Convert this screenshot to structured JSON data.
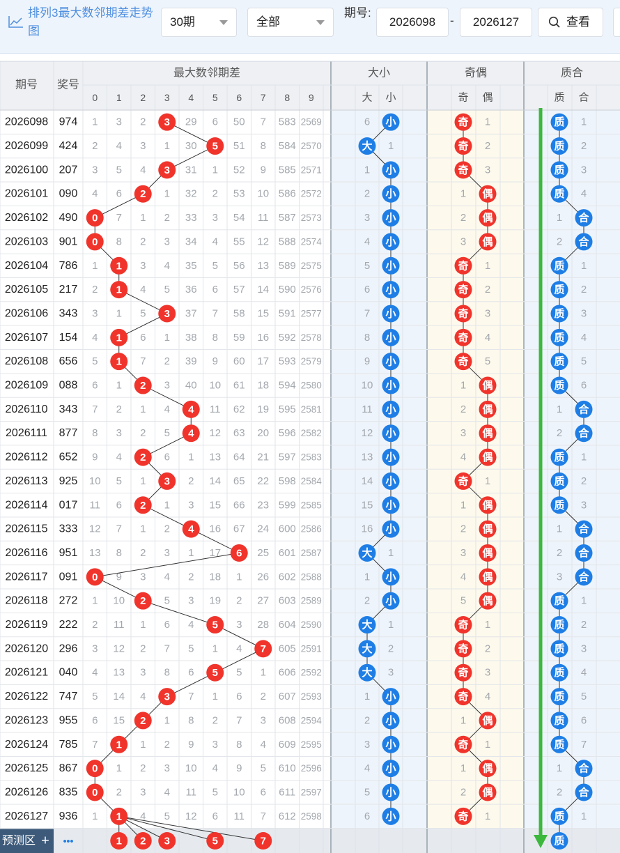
{
  "toolbar": {
    "title": "排列3最大数邻期差走势图",
    "period_select": "30期",
    "filter_select": "全部",
    "issue_label": "期号:",
    "issue_start": "2026098",
    "issue_end": "2026127",
    "range_separator": "-",
    "query_button": "查看"
  },
  "table": {
    "headers": {
      "issue": "期号",
      "prize": "奖号",
      "max_diff": "最大数邻期差",
      "size": "大小",
      "parity": "奇偶",
      "prime": "质合"
    },
    "diff_columns": [
      "0",
      "1",
      "2",
      "3",
      "4",
      "5",
      "6",
      "7",
      "8",
      "9"
    ],
    "size_columns": [
      "大",
      "小"
    ],
    "parity_columns": [
      "奇",
      "偶"
    ],
    "prime_columns": [
      "质",
      "合"
    ],
    "rows": [
      {
        "issue": "2026098",
        "prize": "974",
        "diff": [
          "1",
          "3",
          "2",
          "3",
          "29",
          "6",
          "50",
          "7",
          "583",
          "2569"
        ],
        "hit": 3,
        "size": [
          "6",
          "小"
        ],
        "size_hit": 1,
        "parity": [
          "奇",
          "1"
        ],
        "parity_hit": 0,
        "prime": [
          "质",
          "1"
        ],
        "prime_hit": 0
      },
      {
        "issue": "2026099",
        "prize": "424",
        "diff": [
          "2",
          "4",
          "3",
          "1",
          "30",
          "5",
          "51",
          "8",
          "584",
          "2570"
        ],
        "hit": 5,
        "size": [
          "大",
          "1"
        ],
        "size_hit": 0,
        "parity": [
          "奇",
          "2"
        ],
        "parity_hit": 0,
        "prime": [
          "质",
          "2"
        ],
        "prime_hit": 0
      },
      {
        "issue": "2026100",
        "prize": "207",
        "diff": [
          "3",
          "5",
          "4",
          "3",
          "31",
          "1",
          "52",
          "9",
          "585",
          "2571"
        ],
        "hit": 3,
        "size": [
          "1",
          "小"
        ],
        "size_hit": 1,
        "parity": [
          "奇",
          "3"
        ],
        "parity_hit": 0,
        "prime": [
          "质",
          "3"
        ],
        "prime_hit": 0
      },
      {
        "issue": "2026101",
        "prize": "090",
        "diff": [
          "4",
          "6",
          "2",
          "1",
          "32",
          "2",
          "53",
          "10",
          "586",
          "2572"
        ],
        "hit": 2,
        "size": [
          "2",
          "小"
        ],
        "size_hit": 1,
        "parity": [
          "1",
          "偶"
        ],
        "parity_hit": 1,
        "prime": [
          "质",
          "4"
        ],
        "prime_hit": 0
      },
      {
        "issue": "2026102",
        "prize": "490",
        "diff": [
          "0",
          "7",
          "1",
          "2",
          "33",
          "3",
          "54",
          "11",
          "587",
          "2573"
        ],
        "hit": 0,
        "size": [
          "3",
          "小"
        ],
        "size_hit": 1,
        "parity": [
          "2",
          "偶"
        ],
        "parity_hit": 1,
        "prime": [
          "1",
          "合"
        ],
        "prime_hit": 1
      },
      {
        "issue": "2026103",
        "prize": "901",
        "diff": [
          "0",
          "8",
          "2",
          "3",
          "34",
          "4",
          "55",
          "12",
          "588",
          "2574"
        ],
        "hit": 0,
        "size": [
          "4",
          "小"
        ],
        "size_hit": 1,
        "parity": [
          "3",
          "偶"
        ],
        "parity_hit": 1,
        "prime": [
          "2",
          "合"
        ],
        "prime_hit": 1
      },
      {
        "issue": "2026104",
        "prize": "786",
        "diff": [
          "1",
          "1",
          "3",
          "4",
          "35",
          "5",
          "56",
          "13",
          "589",
          "2575"
        ],
        "hit": 1,
        "size": [
          "5",
          "小"
        ],
        "size_hit": 1,
        "parity": [
          "奇",
          "1"
        ],
        "parity_hit": 0,
        "prime": [
          "质",
          "1"
        ],
        "prime_hit": 0
      },
      {
        "issue": "2026105",
        "prize": "217",
        "diff": [
          "2",
          "1",
          "4",
          "5",
          "36",
          "6",
          "57",
          "14",
          "590",
          "2576"
        ],
        "hit": 1,
        "size": [
          "6",
          "小"
        ],
        "size_hit": 1,
        "parity": [
          "奇",
          "2"
        ],
        "parity_hit": 0,
        "prime": [
          "质",
          "2"
        ],
        "prime_hit": 0
      },
      {
        "issue": "2026106",
        "prize": "343",
        "diff": [
          "3",
          "1",
          "5",
          "3",
          "37",
          "7",
          "58",
          "15",
          "591",
          "2577"
        ],
        "hit": 3,
        "size": [
          "7",
          "小"
        ],
        "size_hit": 1,
        "parity": [
          "奇",
          "3"
        ],
        "parity_hit": 0,
        "prime": [
          "质",
          "3"
        ],
        "prime_hit": 0
      },
      {
        "issue": "2026107",
        "prize": "154",
        "diff": [
          "4",
          "1",
          "6",
          "1",
          "38",
          "8",
          "59",
          "16",
          "592",
          "2578"
        ],
        "hit": 1,
        "size": [
          "8",
          "小"
        ],
        "size_hit": 1,
        "parity": [
          "奇",
          "4"
        ],
        "parity_hit": 0,
        "prime": [
          "质",
          "4"
        ],
        "prime_hit": 0
      },
      {
        "issue": "2026108",
        "prize": "656",
        "diff": [
          "5",
          "1",
          "7",
          "2",
          "39",
          "9",
          "60",
          "17",
          "593",
          "2579"
        ],
        "hit": 1,
        "size": [
          "9",
          "小"
        ],
        "size_hit": 1,
        "parity": [
          "奇",
          "5"
        ],
        "parity_hit": 0,
        "prime": [
          "质",
          "5"
        ],
        "prime_hit": 0
      },
      {
        "issue": "2026109",
        "prize": "088",
        "diff": [
          "6",
          "1",
          "2",
          "3",
          "40",
          "10",
          "61",
          "18",
          "594",
          "2580"
        ],
        "hit": 2,
        "size": [
          "10",
          "小"
        ],
        "size_hit": 1,
        "parity": [
          "1",
          "偶"
        ],
        "parity_hit": 1,
        "prime": [
          "质",
          "6"
        ],
        "prime_hit": 0
      },
      {
        "issue": "2026110",
        "prize": "343",
        "diff": [
          "7",
          "2",
          "1",
          "4",
          "4",
          "11",
          "62",
          "19",
          "595",
          "2581"
        ],
        "hit": 4,
        "size": [
          "11",
          "小"
        ],
        "size_hit": 1,
        "parity": [
          "2",
          "偶"
        ],
        "parity_hit": 1,
        "prime": [
          "1",
          "合"
        ],
        "prime_hit": 1
      },
      {
        "issue": "2026111",
        "prize": "877",
        "diff": [
          "8",
          "3",
          "2",
          "5",
          "4",
          "12",
          "63",
          "20",
          "596",
          "2582"
        ],
        "hit": 4,
        "size": [
          "12",
          "小"
        ],
        "size_hit": 1,
        "parity": [
          "3",
          "偶"
        ],
        "parity_hit": 1,
        "prime": [
          "2",
          "合"
        ],
        "prime_hit": 1
      },
      {
        "issue": "2026112",
        "prize": "652",
        "diff": [
          "9",
          "4",
          "2",
          "6",
          "1",
          "13",
          "64",
          "21",
          "597",
          "2583"
        ],
        "hit": 2,
        "size": [
          "13",
          "小"
        ],
        "size_hit": 1,
        "parity": [
          "4",
          "偶"
        ],
        "parity_hit": 1,
        "prime": [
          "质",
          "1"
        ],
        "prime_hit": 0
      },
      {
        "issue": "2026113",
        "prize": "925",
        "diff": [
          "10",
          "5",
          "1",
          "3",
          "2",
          "14",
          "65",
          "22",
          "598",
          "2584"
        ],
        "hit": 3,
        "size": [
          "14",
          "小"
        ],
        "size_hit": 1,
        "parity": [
          "奇",
          "1"
        ],
        "parity_hit": 0,
        "prime": [
          "质",
          "2"
        ],
        "prime_hit": 0
      },
      {
        "issue": "2026114",
        "prize": "017",
        "diff": [
          "11",
          "6",
          "2",
          "1",
          "3",
          "15",
          "66",
          "23",
          "599",
          "2585"
        ],
        "hit": 2,
        "size": [
          "15",
          "小"
        ],
        "size_hit": 1,
        "parity": [
          "1",
          "偶"
        ],
        "parity_hit": 1,
        "prime": [
          "质",
          "3"
        ],
        "prime_hit": 0
      },
      {
        "issue": "2026115",
        "prize": "333",
        "diff": [
          "12",
          "7",
          "1",
          "2",
          "4",
          "16",
          "67",
          "24",
          "600",
          "2586"
        ],
        "hit": 4,
        "size": [
          "16",
          "小"
        ],
        "size_hit": 1,
        "parity": [
          "2",
          "偶"
        ],
        "parity_hit": 1,
        "prime": [
          "1",
          "合"
        ],
        "prime_hit": 1
      },
      {
        "issue": "2026116",
        "prize": "951",
        "diff": [
          "13",
          "8",
          "2",
          "3",
          "1",
          "17",
          "6",
          "25",
          "601",
          "2587"
        ],
        "hit": 6,
        "size": [
          "大",
          "1"
        ],
        "size_hit": 0,
        "parity": [
          "3",
          "偶"
        ],
        "parity_hit": 1,
        "prime": [
          "2",
          "合"
        ],
        "prime_hit": 1
      },
      {
        "issue": "2026117",
        "prize": "091",
        "diff": [
          "0",
          "9",
          "3",
          "4",
          "2",
          "18",
          "1",
          "26",
          "602",
          "2588"
        ],
        "hit": 0,
        "size": [
          "1",
          "小"
        ],
        "size_hit": 1,
        "parity": [
          "4",
          "偶"
        ],
        "parity_hit": 1,
        "prime": [
          "3",
          "合"
        ],
        "prime_hit": 1
      },
      {
        "issue": "2026118",
        "prize": "272",
        "diff": [
          "1",
          "10",
          "2",
          "5",
          "3",
          "19",
          "2",
          "27",
          "603",
          "2589"
        ],
        "hit": 2,
        "size": [
          "2",
          "小"
        ],
        "size_hit": 1,
        "parity": [
          "5",
          "偶"
        ],
        "parity_hit": 1,
        "prime": [
          "质",
          "1"
        ],
        "prime_hit": 0
      },
      {
        "issue": "2026119",
        "prize": "222",
        "diff": [
          "2",
          "11",
          "1",
          "6",
          "4",
          "5",
          "3",
          "28",
          "604",
          "2590"
        ],
        "hit": 5,
        "size": [
          "大",
          "1"
        ],
        "size_hit": 0,
        "parity": [
          "奇",
          "1"
        ],
        "parity_hit": 0,
        "prime": [
          "质",
          "2"
        ],
        "prime_hit": 0
      },
      {
        "issue": "2026120",
        "prize": "296",
        "diff": [
          "3",
          "12",
          "2",
          "7",
          "5",
          "1",
          "4",
          "7",
          "605",
          "2591"
        ],
        "hit": 7,
        "size": [
          "大",
          "2"
        ],
        "size_hit": 0,
        "parity": [
          "奇",
          "2"
        ],
        "parity_hit": 0,
        "prime": [
          "质",
          "3"
        ],
        "prime_hit": 0
      },
      {
        "issue": "2026121",
        "prize": "040",
        "diff": [
          "4",
          "13",
          "3",
          "8",
          "6",
          "5",
          "5",
          "1",
          "606",
          "2592"
        ],
        "hit": 5,
        "size": [
          "大",
          "3"
        ],
        "size_hit": 0,
        "parity": [
          "奇",
          "3"
        ],
        "parity_hit": 0,
        "prime": [
          "质",
          "4"
        ],
        "prime_hit": 0
      },
      {
        "issue": "2026122",
        "prize": "747",
        "diff": [
          "5",
          "14",
          "4",
          "3",
          "7",
          "1",
          "6",
          "2",
          "607",
          "2593"
        ],
        "hit": 3,
        "size": [
          "1",
          "小"
        ],
        "size_hit": 1,
        "parity": [
          "奇",
          "4"
        ],
        "parity_hit": 0,
        "prime": [
          "质",
          "5"
        ],
        "prime_hit": 0
      },
      {
        "issue": "2026123",
        "prize": "955",
        "diff": [
          "6",
          "15",
          "2",
          "1",
          "8",
          "2",
          "7",
          "3",
          "608",
          "2594"
        ],
        "hit": 2,
        "size": [
          "2",
          "小"
        ],
        "size_hit": 1,
        "parity": [
          "1",
          "偶"
        ],
        "parity_hit": 1,
        "prime": [
          "质",
          "6"
        ],
        "prime_hit": 0
      },
      {
        "issue": "2026124",
        "prize": "785",
        "diff": [
          "7",
          "1",
          "1",
          "2",
          "9",
          "3",
          "8",
          "4",
          "609",
          "2595"
        ],
        "hit": 1,
        "size": [
          "3",
          "小"
        ],
        "size_hit": 1,
        "parity": [
          "奇",
          "1"
        ],
        "parity_hit": 0,
        "prime": [
          "质",
          "7"
        ],
        "prime_hit": 0
      },
      {
        "issue": "2026125",
        "prize": "867",
        "diff": [
          "0",
          "1",
          "2",
          "3",
          "10",
          "4",
          "9",
          "5",
          "610",
          "2596"
        ],
        "hit": 0,
        "size": [
          "4",
          "小"
        ],
        "size_hit": 1,
        "parity": [
          "1",
          "偶"
        ],
        "parity_hit": 1,
        "prime": [
          "1",
          "合"
        ],
        "prime_hit": 1
      },
      {
        "issue": "2026126",
        "prize": "835",
        "diff": [
          "0",
          "2",
          "3",
          "4",
          "11",
          "5",
          "10",
          "6",
          "611",
          "2597"
        ],
        "hit": 0,
        "size": [
          "5",
          "小"
        ],
        "size_hit": 1,
        "parity": [
          "2",
          "偶"
        ],
        "parity_hit": 1,
        "prime": [
          "2",
          "合"
        ],
        "prime_hit": 1
      },
      {
        "issue": "2026127",
        "prize": "936",
        "diff": [
          "1",
          "1",
          "4",
          "5",
          "12",
          "6",
          "11",
          "7",
          "612",
          "2598"
        ],
        "hit": 1,
        "size": [
          "6",
          "小"
        ],
        "size_hit": 1,
        "parity": [
          "奇",
          "1"
        ],
        "parity_hit": 0,
        "prime": [
          "质",
          "1"
        ],
        "prime_hit": 0
      }
    ],
    "predict": {
      "label": "预测区",
      "plus": "+",
      "more": "•••",
      "picks": [
        "1",
        "2",
        "3",
        "5",
        "7"
      ],
      "prime_pick": "质"
    }
  },
  "colors": {
    "red_ball": "#f0342c",
    "blue_ball": "#1e7ee6",
    "green_arrow": "#3cb83c",
    "predict_label_bg": "#3d5a7a"
  }
}
